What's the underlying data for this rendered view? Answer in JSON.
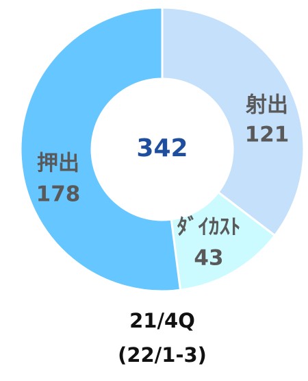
{
  "chart_data": {
    "type": "donut",
    "categories": [
      "射出",
      "ﾀﾞｲｶｽﾄ",
      "押出"
    ],
    "values": [
      121,
      43,
      178
    ],
    "colors": [
      "#c5e0fb",
      "#ccfbff",
      "#66c6ff"
    ],
    "total": 342,
    "caption": [
      "21/4Q",
      "(22/1-3)"
    ]
  }
}
